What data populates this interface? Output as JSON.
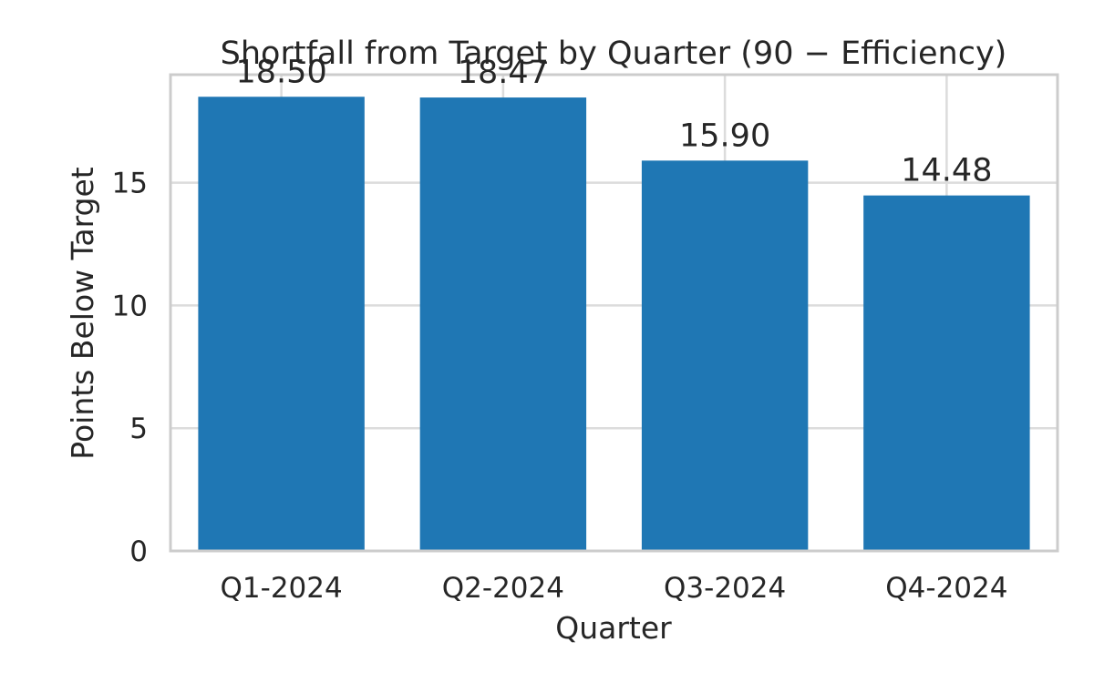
{
  "chart_data": {
    "type": "bar",
    "title": "Shortfall from Target by Quarter (90 − Efficiency)",
    "xlabel": "Quarter",
    "ylabel": "Points Below Target",
    "categories": [
      "Q1-2024",
      "Q2-2024",
      "Q3-2024",
      "Q4-2024"
    ],
    "values": [
      18.5,
      18.47,
      15.9,
      14.48
    ],
    "data_labels": [
      "18.50",
      "18.47",
      "15.90",
      "14.48"
    ],
    "ylim": [
      0,
      19.4
    ],
    "yticks": [
      0,
      5,
      10,
      15
    ],
    "ytick_labels": [
      "0",
      "5",
      "10",
      "15"
    ],
    "grid": true,
    "bar_color": "#1f77b4",
    "grid_color": "#dcdcdc",
    "spine_color": "#cccccc",
    "text_color": "#262626"
  }
}
